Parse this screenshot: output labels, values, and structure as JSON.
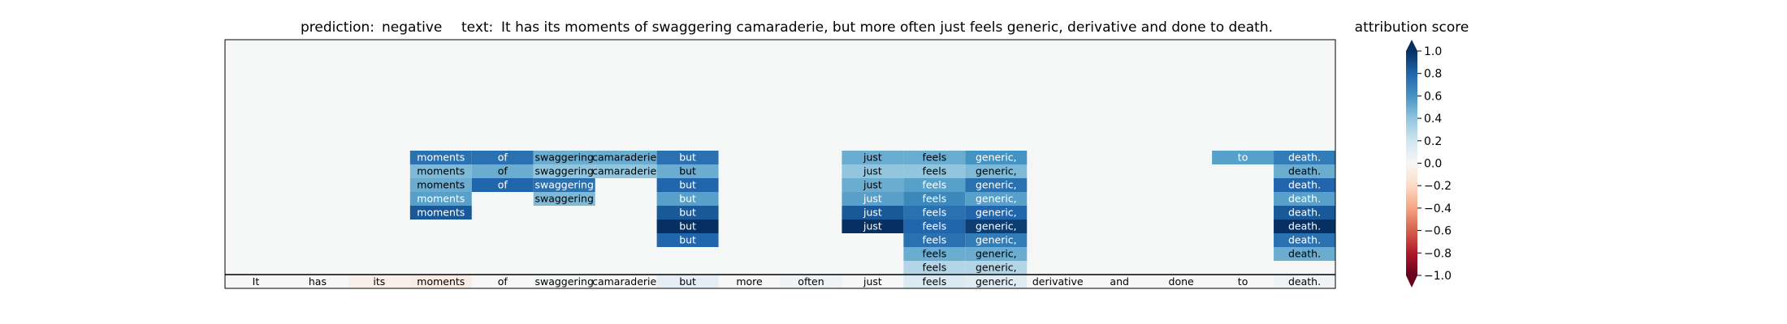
{
  "header": {
    "prediction_label": "prediction:",
    "prediction_value": "negative",
    "text_label": "text:",
    "text_value": "It has its moments of swaggering camaraderie, but more often just feels generic, derivative and done to death."
  },
  "colorbar": {
    "title": "attribution score",
    "ticks": [
      "1.0",
      "0.8",
      "0.6",
      "0.4",
      "0.2",
      "0.0",
      "−0.2",
      "−0.4",
      "−0.6",
      "−0.8",
      "−1.0"
    ],
    "tick_values": [
      1.0,
      0.8,
      0.6,
      0.4,
      0.2,
      0.0,
      -0.2,
      -0.4,
      -0.6,
      -0.8,
      -1.0
    ],
    "range": [
      -1.0,
      1.0
    ],
    "extend": "both",
    "colormap": "RdBu",
    "colormap_stops": [
      "#67001f",
      "#b2182b",
      "#d6604d",
      "#f4a582",
      "#fddbc7",
      "#f7f7f7",
      "#d1e5f0",
      "#92c5de",
      "#4393c3",
      "#2166ac",
      "#053061"
    ]
  },
  "chart_data": {
    "type": "heatmap",
    "tokens": [
      "It",
      "has",
      "its",
      "moments",
      "of",
      "swaggering",
      "camaraderie,",
      "but",
      "more",
      "often",
      "just",
      "feels",
      "generic,",
      "derivative",
      "and",
      "done",
      "to",
      "death."
    ],
    "token_row_scores": [
      0.0,
      0.0,
      -0.05,
      -0.08,
      0.0,
      0.02,
      0.0,
      0.1,
      0.0,
      0.05,
      0.0,
      0.15,
      0.12,
      0.0,
      0.0,
      0.0,
      0.0,
      0.05
    ],
    "layers": [
      [
        null,
        null,
        null,
        0.75,
        0.75,
        0.5,
        0.5,
        0.75,
        null,
        null,
        0.5,
        0.5,
        0.6,
        null,
        null,
        null,
        0.55,
        0.7
      ],
      [
        null,
        null,
        null,
        0.45,
        0.5,
        0.4,
        0.4,
        0.5,
        null,
        null,
        0.4,
        0.4,
        0.45,
        null,
        null,
        null,
        null,
        0.5
      ],
      [
        null,
        null,
        null,
        0.5,
        0.8,
        0.75,
        null,
        0.8,
        null,
        null,
        0.5,
        0.55,
        0.75,
        null,
        null,
        null,
        null,
        0.8
      ],
      [
        null,
        null,
        null,
        0.55,
        null,
        0.45,
        null,
        0.55,
        null,
        null,
        0.55,
        0.65,
        0.55,
        null,
        null,
        null,
        null,
        0.55
      ],
      [
        null,
        null,
        null,
        0.85,
        null,
        null,
        null,
        0.85,
        null,
        null,
        0.85,
        0.75,
        0.8,
        null,
        null,
        null,
        null,
        0.85
      ],
      [
        null,
        null,
        null,
        null,
        null,
        null,
        null,
        1.0,
        null,
        null,
        1.0,
        0.8,
        0.95,
        null,
        null,
        null,
        null,
        1.0
      ],
      [
        null,
        null,
        null,
        null,
        null,
        null,
        null,
        0.8,
        null,
        null,
        null,
        0.75,
        0.7,
        null,
        null,
        null,
        null,
        0.75
      ],
      [
        null,
        null,
        null,
        null,
        null,
        null,
        null,
        null,
        null,
        null,
        null,
        0.5,
        0.5,
        null,
        null,
        null,
        null,
        0.5
      ],
      [
        null,
        null,
        null,
        null,
        null,
        null,
        null,
        null,
        null,
        null,
        null,
        0.3,
        0.3,
        null,
        null,
        null,
        null,
        null
      ]
    ]
  }
}
